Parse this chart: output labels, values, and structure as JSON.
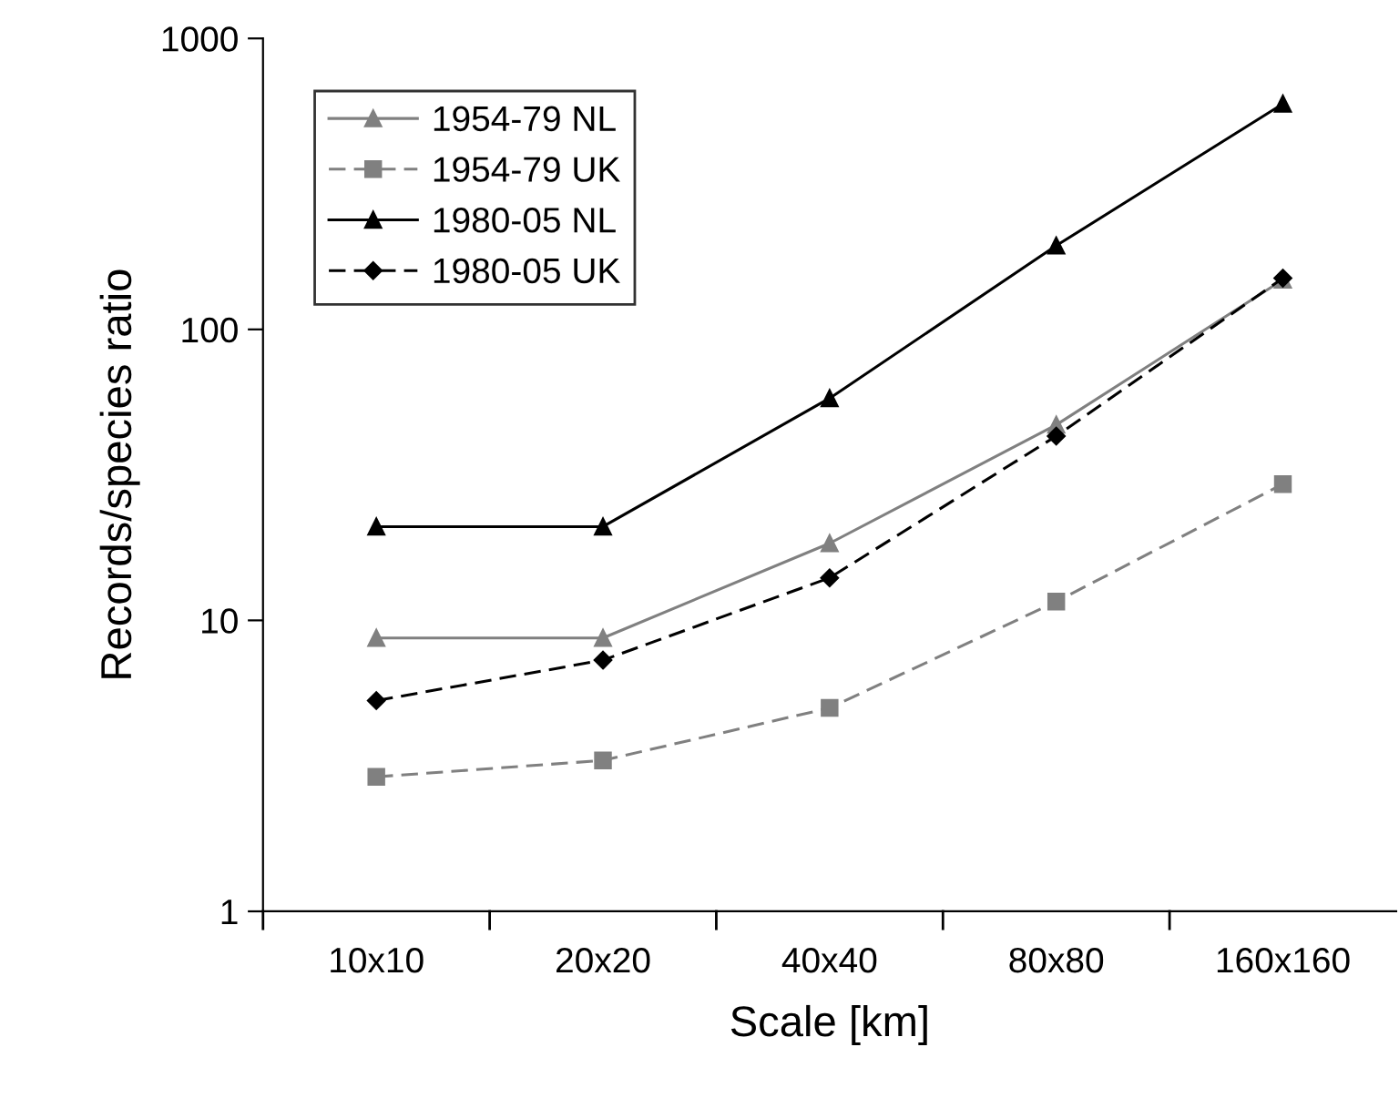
{
  "chart_data": {
    "type": "line",
    "xlabel": "Scale [km]",
    "ylabel": "Records/species ratio",
    "categories": [
      "10x10",
      "20x20",
      "40x40",
      "80x80",
      "160x160"
    ],
    "log": true,
    "ylim": [
      1,
      1000
    ],
    "yticks": [
      1,
      10,
      100,
      1000
    ],
    "legend": "top left",
    "grid": false,
    "series": [
      {
        "name": "1954-79 NL",
        "color": "#808080",
        "marker": "triangle",
        "line_style": "solid",
        "values": [
          8.7,
          8.7,
          18.4,
          47,
          148
        ]
      },
      {
        "name": "1954-79 UK",
        "color": "#808080",
        "marker": "square",
        "line_style": "dashed",
        "values": [
          2.9,
          3.3,
          5.0,
          11.6,
          29.4
        ]
      },
      {
        "name": "1980-05 NL",
        "color": "#000000",
        "marker": "triangle",
        "line_style": "solid",
        "values": [
          21,
          21,
          58,
          194,
          596
        ]
      },
      {
        "name": "1980-05 UK",
        "color": "#000000",
        "marker": "diamond",
        "line_style": "dashed",
        "values": [
          5.3,
          7.3,
          14,
          43,
          150
        ]
      }
    ]
  }
}
